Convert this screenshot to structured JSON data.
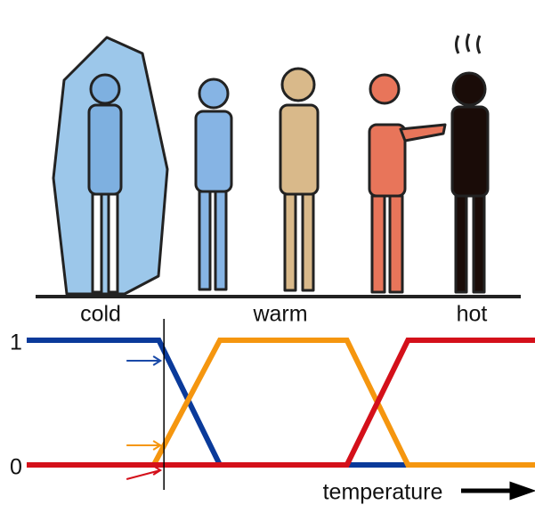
{
  "chart_data": {
    "type": "line",
    "labels": [
      "cold",
      "warm",
      "hot"
    ],
    "xlabel": "temperature",
    "xlim": [
      0,
      100
    ],
    "ylim": [
      0,
      1
    ],
    "yticks": [
      0,
      1
    ],
    "vline": 27,
    "series": [
      {
        "color": "#0a3a9a",
        "x": [
          0,
          26,
          38,
          100
        ],
        "values": [
          1,
          1,
          0,
          0
        ]
      },
      {
        "color": "#f5960f",
        "x": [
          0,
          25,
          38,
          63,
          75,
          100
        ],
        "values": [
          0,
          0,
          1,
          1,
          0,
          0
        ]
      },
      {
        "color": "#d4101a",
        "x": [
          0,
          63,
          75,
          100
        ],
        "values": [
          0,
          0,
          1,
          1
        ]
      }
    ]
  }
}
